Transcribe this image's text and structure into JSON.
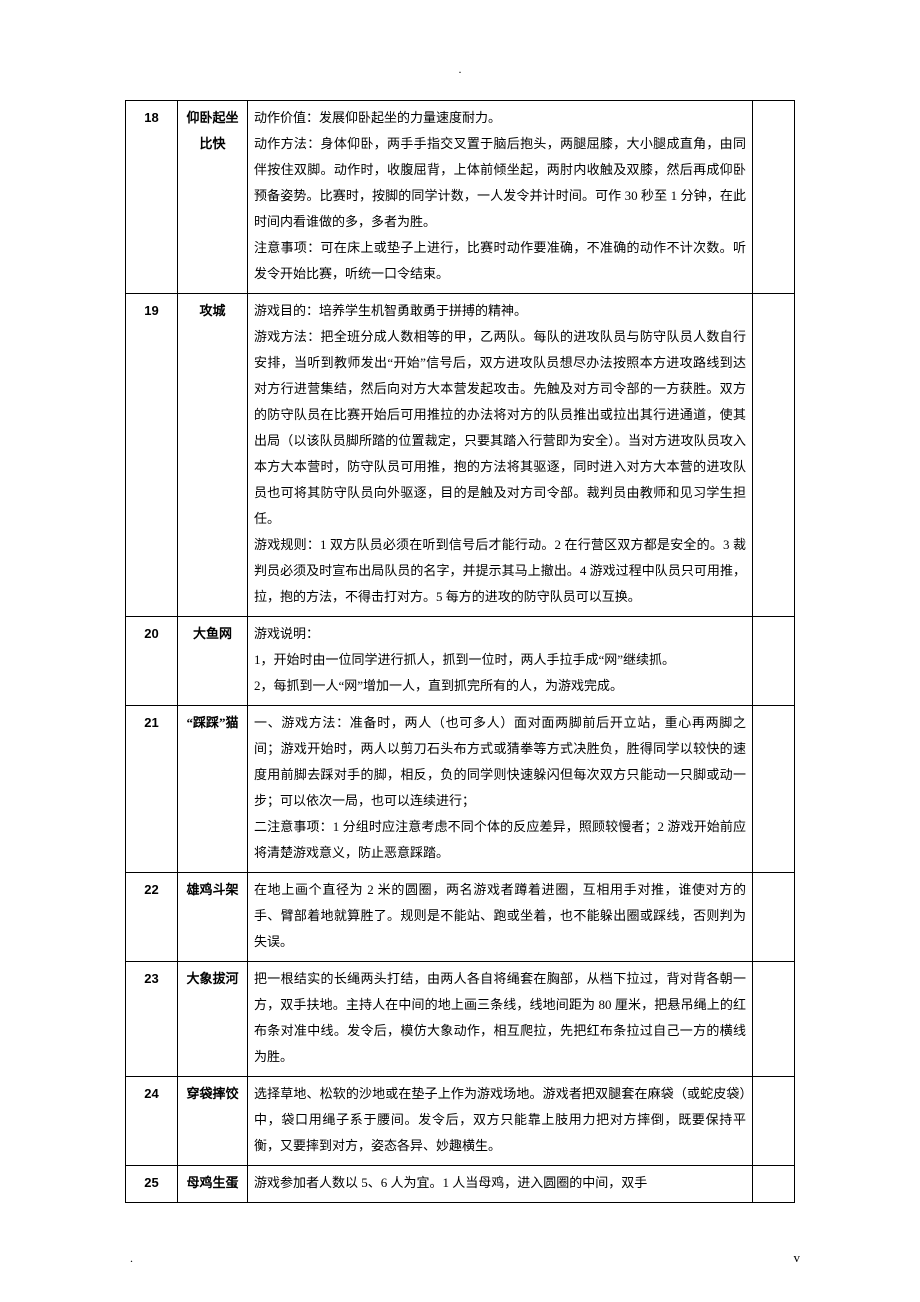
{
  "marks": {
    "top": ".",
    "bottom": ".",
    "pagenum": "v"
  },
  "rows": [
    {
      "num": "18",
      "name": "仰卧起坐比快",
      "desc": [
        "动作价值：发展仰卧起坐的力量速度耐力。",
        "动作方法：身体仰卧，两手手指交叉置于脑后抱头，两腿屈膝，大小腿成直角，由同伴按住双脚。动作时，收腹屈背，上体前倾坐起，两肘内收触及双膝，然后再成仰卧预备姿势。比赛时，按脚的同学计数，一人发令并计时间。可作 30 秒至 1 分钟，在此时间内看谁做的多，多者为胜。",
        "注意事项：可在床上或垫子上进行，比赛时动作要准确，不准确的动作不计次数。听发令开始比赛，听统一口令结束。"
      ]
    },
    {
      "num": "19",
      "name": "攻城",
      "desc": [
        "游戏目的：培养学生机智勇敢勇于拼搏的精神。",
        "游戏方法：把全班分成人数相等的甲，乙两队。每队的进攻队员与防守队员人数自行安排，当听到教师发出“开始”信号后，双方进攻队员想尽办法按照本方进攻路线到达对方行进营集结，然后向对方大本营发起攻击。先触及对方司令部的一方获胜。双方的防守队员在比赛开始后可用推拉的办法将对方的队员推出或拉出其行进通道，使其出局（以该队员脚所踏的位置裁定，只要其踏入行营即为安全）。当对方进攻队员攻入本方大本营时，防守队员可用推，抱的方法将其驱逐，同时进入对方大本营的进攻队员也可将其防守队员向外驱逐，目的是触及对方司令部。裁判员由教师和见习学生担任。",
        "游戏规则：1 双方队员必须在听到信号后才能行动。2 在行营区双方都是安全的。3 裁判员必须及时宣布出局队员的名字，并提示其马上撤出。4 游戏过程中队员只可用推，拉，抱的方法，不得击打对方。5 每方的进攻的防守队员可以互换。"
      ]
    },
    {
      "num": "20",
      "name": "大鱼网",
      "desc": [
        "游戏说明：",
        "1，开始时由一位同学进行抓人，抓到一位时，两人手拉手成“网”继续抓。",
        "2，每抓到一人“网”增加一人，直到抓完所有的人，为游戏完成。"
      ]
    },
    {
      "num": "21",
      "name": "“踩踩”猫",
      "desc": [
        "一、游戏方法：准备时，两人（也可多人）面对面两脚前后开立站，重心再两脚之间；游戏开始时，两人以剪刀石头布方式或猜拳等方式决胜负，胜得同学以较快的速度用前脚去踩对手的脚，相反，负的同学则快速躲闪但每次双方只能动一只脚或动一步；可以依次一局，也可以连续进行；",
        "二注意事项：1 分组时应注意考虑不同个体的反应差异，照顾较慢者；2 游戏开始前应将清楚游戏意义，防止恶意踩踏。"
      ]
    },
    {
      "num": "22",
      "name": "雄鸡斗架",
      "desc": [
        "在地上画个直径为 2 米的圆圈，两名游戏者蹲着进圈，互相用手对推，谁使对方的手、臂部着地就算胜了。规则是不能站、跑或坐着，也不能躲出圈或踩线，否则判为失误。"
      ]
    },
    {
      "num": "23",
      "name": "大象拔河",
      "desc": [
        "把一根结实的长绳两头打结，由两人各自将绳套在胸部，从档下拉过，背对背各朝一方，双手扶地。主持人在中间的地上画三条线，线地间距为 80 厘米，把悬吊绳上的红布条对准中线。发令后，模仿大象动作，相互爬拉，先把红布条拉过自己一方的横线为胜。"
      ]
    },
    {
      "num": "24",
      "name": "穿袋摔饺",
      "desc": [
        "选择草地、松软的沙地或在垫子上作为游戏场地。游戏者把双腿套在麻袋（或蛇皮袋）中，袋口用绳子系于腰间。发令后，双方只能靠上肢用力把对方摔倒，既要保持平衡，又要摔到对方，姿态各异、妙趣横生。"
      ]
    },
    {
      "num": "25",
      "name": "母鸡生蛋",
      "desc": [
        "游戏参加者人数以 5、6 人为宜。1 人当母鸡，进入圆圈的中间，双手"
      ]
    }
  ]
}
